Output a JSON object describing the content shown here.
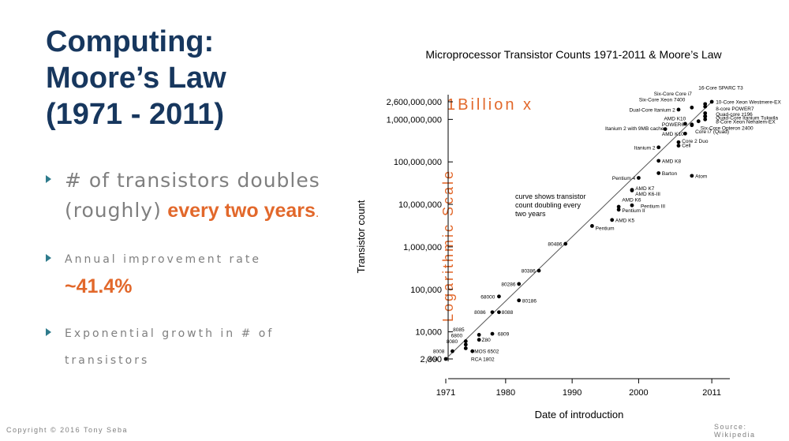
{
  "slide": {
    "title_lines": [
      "Computing:",
      "Moore’s Law",
      "(1971 - 2011)"
    ],
    "bullet1": {
      "l1": "# of transistors doubles",
      "l2a": "(roughly)",
      "l2b": "every two years",
      "l2c": "."
    },
    "bullet2": {
      "l1": "Annual improvement rate",
      "l2": "~41.4%"
    },
    "bullet3": {
      "l1": "Exponential growth in # of",
      "l2": "transistors"
    },
    "copyright": "Copyright © 2016 Tony Seba",
    "source": "Source: Wikipedia",
    "accent_color": "#e2682b",
    "title_color": "#17375e"
  },
  "chart_data": {
    "type": "scatter",
    "title": "Microprocessor Transistor Counts 1971-2011 & Moore’s Law",
    "xlabel": "Date of introduction",
    "ylabel": "Transistor count",
    "xlim": [
      1969,
      2013
    ],
    "ylim": [
      1800,
      3500000000
    ],
    "y_scale": "log",
    "x_ticks": [
      1971,
      1980,
      1990,
      2000,
      2011
    ],
    "y_ticks": [
      {
        "v": 2300,
        "label": "2,300"
      },
      {
        "v": 10000,
        "label": "10,000"
      },
      {
        "v": 100000,
        "label": "100,000"
      },
      {
        "v": 1000000,
        "label": "1,000,000"
      },
      {
        "v": 10000000,
        "label": "10,000,000"
      },
      {
        "v": 100000000,
        "label": "100,000,000"
      },
      {
        "v": 1000000000,
        "label": "1,000,000,000"
      },
      {
        "v": 2600000000,
        "label": "2,600,000,000"
      }
    ],
    "trend_line": {
      "x": [
        1971,
        2011
      ],
      "y": [
        2300,
        2600000000
      ]
    },
    "annotations": {
      "billion": "1Billion x",
      "log_scale": "Logarithmic Scale",
      "curve_note": [
        "curve shows transistor",
        "count doubling every",
        "two years"
      ]
    },
    "points": [
      {
        "name": "4004",
        "x": 1971,
        "y": 2300
      },
      {
        "name": "8008",
        "x": 1972,
        "y": 3500
      },
      {
        "name": "8080",
        "x": 1974,
        "y": 6000
      },
      {
        "name": "RCA 1802",
        "x": 1974,
        "y": 5000
      },
      {
        "name": "6800",
        "x": 1974,
        "y": 4100
      },
      {
        "name": "8085",
        "x": 1976,
        "y": 6500
      },
      {
        "name": "Z80",
        "x": 1976,
        "y": 8500
      },
      {
        "name": "MOS 6502",
        "x": 1975,
        "y": 3500
      },
      {
        "name": "6809",
        "x": 1978,
        "y": 9000
      },
      {
        "name": "8086",
        "x": 1978,
        "y": 29000
      },
      {
        "name": "8088",
        "x": 1979,
        "y": 29000
      },
      {
        "name": "68000",
        "x": 1979,
        "y": 68000
      },
      {
        "name": "80186",
        "x": 1982,
        "y": 55000
      },
      {
        "name": "80286",
        "x": 1982,
        "y": 134000
      },
      {
        "name": "80386",
        "x": 1985,
        "y": 275000
      },
      {
        "name": "80486",
        "x": 1989,
        "y": 1180000
      },
      {
        "name": "Pentium",
        "x": 1993,
        "y": 3100000
      },
      {
        "name": "AMD K5",
        "x": 1996,
        "y": 4300000
      },
      {
        "name": "Pentium II",
        "x": 1997,
        "y": 7500000
      },
      {
        "name": "Pentium III",
        "x": 1999,
        "y": 9500000
      },
      {
        "name": "AMD K6",
        "x": 1997,
        "y": 8800000
      },
      {
        "name": "AMD K6-III",
        "x": 1999,
        "y": 21300000
      },
      {
        "name": "AMD K7",
        "x": 1999,
        "y": 22000000
      },
      {
        "name": "Pentium 4",
        "x": 2000,
        "y": 42000000
      },
      {
        "name": "Barton",
        "x": 2003,
        "y": 54300000
      },
      {
        "name": "AMD K8",
        "x": 2003,
        "y": 105900000
      },
      {
        "name": "Itanium 2",
        "x": 2003,
        "y": 220000000
      },
      {
        "name": "Atom",
        "x": 2008,
        "y": 47000000
      },
      {
        "name": "Cell",
        "x": 2006,
        "y": 241000000
      },
      {
        "name": "Core 2 Duo",
        "x": 2006,
        "y": 291000000
      },
      {
        "name": "Core i7 (Quad)",
        "x": 2008,
        "y": 731000000
      },
      {
        "name": "AMD K10",
        "x": 2007,
        "y": 463000000
      },
      {
        "name": "Itanium 2 with 9MB cache",
        "x": 2004,
        "y": 592000000
      },
      {
        "name": "POWER6",
        "x": 2007,
        "y": 789000000
      },
      {
        "name": "AMD K10",
        "x": 2008,
        "y": 758000000
      },
      {
        "name": "Dual-Core Itanium 2",
        "x": 2006,
        "y": 1700000000
      },
      {
        "name": "Six-Core Opteron 2400",
        "x": 2009,
        "y": 904000000
      },
      {
        "name": "Six-Core Xeon 7400",
        "x": 2008,
        "y": 1900000000
      },
      {
        "name": "Six-Core Core i7",
        "x": 2010,
        "y": 1170000000
      },
      {
        "name": "8-Core Xeon Nehalem-EX",
        "x": 2010,
        "y": 2300000000
      },
      {
        "name": "Quad-Core Itanium Tukwila",
        "x": 2010,
        "y": 2000000000
      },
      {
        "name": "Quad-core z196",
        "x": 2010,
        "y": 1400000000
      },
      {
        "name": "8-core POWER7",
        "x": 2010,
        "y": 1200000000
      },
      {
        "name": "10-Core Xeon Westmere-EX",
        "x": 2011,
        "y": 2600000000
      },
      {
        "name": "16-Core SPARC T3",
        "x": 2010,
        "y": 1000000000
      }
    ],
    "labels": [
      {
        "t": "4004",
        "x": 1969.8,
        "y": 2300,
        "a": "end"
      },
      {
        "t": "8008",
        "x": 1970.8,
        "y": 3500,
        "a": "end"
      },
      {
        "t": "8080",
        "x": 1972.8,
        "y": 6000,
        "a": "end"
      },
      {
        "t": "6800",
        "x": 1973.5,
        "y": 8300,
        "a": "end"
      },
      {
        "t": "8085",
        "x": 1973.8,
        "y": 11500,
        "a": "end"
      },
      {
        "t": "RCA 1802",
        "x": 1974.8,
        "y": 2300,
        "a": "start"
      },
      {
        "t": "MOS 6502",
        "x": 1975.3,
        "y": 3500,
        "a": "start"
      },
      {
        "t": "Z80",
        "x": 1976.4,
        "y": 6500,
        "a": "start"
      },
      {
        "t": "6809",
        "x": 1978.8,
        "y": 9000,
        "a": "start"
      },
      {
        "t": "8086",
        "x": 1977,
        "y": 29000,
        "a": "end"
      },
      {
        "t": "8088",
        "x": 1979.4,
        "y": 29000,
        "a": "start"
      },
      {
        "t": "68000",
        "x": 1978.4,
        "y": 68000,
        "a": "end"
      },
      {
        "t": "80186",
        "x": 1982.5,
        "y": 55000,
        "a": "start"
      },
      {
        "t": "80286",
        "x": 1981.5,
        "y": 134000,
        "a": "end"
      },
      {
        "t": "80386",
        "x": 1984.5,
        "y": 275000,
        "a": "end"
      },
      {
        "t": "80486",
        "x": 1988.5,
        "y": 1180000,
        "a": "end"
      },
      {
        "t": "Pentium",
        "x": 1993.5,
        "y": 2800000,
        "a": "start"
      },
      {
        "t": "AMD K5",
        "x": 1996.5,
        "y": 4300000,
        "a": "start"
      },
      {
        "t": "Pentium II",
        "x": 1997.5,
        "y": 7300000,
        "a": "start"
      },
      {
        "t": "Pentium III",
        "x": 2000.3,
        "y": 9200000,
        "a": "start"
      },
      {
        "t": "AMD K6",
        "x": 1997.5,
        "y": 13000000,
        "a": "start"
      },
      {
        "t": "AMD K6-III",
        "x": 1999.5,
        "y": 18000000,
        "a": "start"
      },
      {
        "t": "AMD K7",
        "x": 1999.5,
        "y": 24000000,
        "a": "start"
      },
      {
        "t": "Pentium 4",
        "x": 1999.5,
        "y": 42000000,
        "a": "end"
      },
      {
        "t": "Barton",
        "x": 2003.5,
        "y": 54300000,
        "a": "start"
      },
      {
        "t": "AMD K8",
        "x": 2003.5,
        "y": 105900000,
        "a": "start"
      },
      {
        "t": "Itanium 2",
        "x": 2002.5,
        "y": 220000000,
        "a": "end"
      },
      {
        "t": "Atom",
        "x": 2008.5,
        "y": 47000000,
        "a": "start"
      },
      {
        "t": "Core 2 Duo",
        "x": 2006.5,
        "y": 310000000,
        "a": "start"
      },
      {
        "t": "Cell",
        "x": 2006.5,
        "y": 250000000,
        "a": "start"
      },
      {
        "t": "Itanium 2 with 9MB cache",
        "x": 2003.8,
        "y": 620000000,
        "a": "end"
      },
      {
        "t": "AMD K10",
        "x": 2003.5,
        "y": 460000000,
        "a": "start"
      },
      {
        "t": "POWER6",
        "x": 2003.5,
        "y": 770000000,
        "a": "start"
      },
      {
        "t": "AMD K10",
        "x": 2003.8,
        "y": 1050000000,
        "a": "start"
      },
      {
        "t": "Dual-Core Itanium 2",
        "x": 2005.5,
        "y": 1700000000,
        "a": "end"
      },
      {
        "t": "Six-Core Xeon 7400",
        "x": 2007,
        "y": 2950000000,
        "a": "end"
      },
      {
        "t": "Six-Core Core i7",
        "x": 2008,
        "y": 4100000000,
        "a": "end"
      },
      {
        "t": "16-Core SPARC T3",
        "x": 2009,
        "y": 5600000000,
        "a": "start"
      },
      {
        "t": "10-Core Xeon Westmere-EX",
        "x": 2011.6,
        "y": 2600000000,
        "a": "start"
      },
      {
        "t": "8-core POWER7",
        "x": 2011.6,
        "y": 1800000000,
        "a": "start"
      },
      {
        "t": "Quad-core z196",
        "x": 2011.6,
        "y": 1350000000,
        "a": "start"
      },
      {
        "t": "Quad-Core Itanium Tukwila",
        "x": 2011.6,
        "y": 1100000000,
        "a": "start"
      },
      {
        "t": "8-Core Xeon Nehalem-EX",
        "x": 2011.6,
        "y": 900000000,
        "a": "start"
      },
      {
        "t": "Six-Core Opteron 2400",
        "x": 2009.3,
        "y": 640000000,
        "a": "start"
      },
      {
        "t": "Core i7 (Quad)",
        "x": 2008.5,
        "y": 520000000,
        "a": "start"
      }
    ]
  }
}
